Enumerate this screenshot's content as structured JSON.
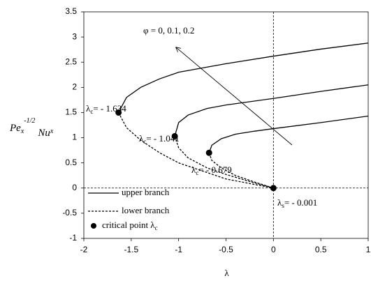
{
  "chart_data": {
    "type": "line",
    "xlabel": "λ",
    "ylabel": {
      "parts": [
        "Pe",
        "x",
        "-1/2",
        "Nu",
        "x"
      ]
    },
    "xlim": [
      -2,
      1
    ],
    "ylim": [
      -1,
      3.5
    ],
    "xticks": [
      -2,
      -1.5,
      -1,
      -0.5,
      0,
      0.5,
      1
    ],
    "yticks": [
      -1,
      -0.5,
      0,
      0.5,
      1,
      1.5,
      2,
      2.5,
      3,
      3.5
    ],
    "color": "#000000",
    "reference_lines": {
      "x": [
        0
      ],
      "y": [
        0
      ]
    },
    "series": [
      {
        "style": "solid",
        "x": [
          -1.634,
          -1.55,
          -1.4,
          -1.2,
          -1,
          -0.5,
          0,
          0.5,
          1
        ],
        "values": [
          1.5,
          1.8,
          2.0,
          2.17,
          2.3,
          2.47,
          2.62,
          2.76,
          2.88
        ]
      },
      {
        "style": "dashed",
        "x": [
          -1.634,
          -1.55,
          -1.4,
          -1.2,
          -1,
          -0.5,
          0
        ],
        "values": [
          1.5,
          1.2,
          0.95,
          0.7,
          0.5,
          0.18,
          0
        ]
      },
      {
        "style": "solid",
        "x": [
          -1.041,
          -1.0,
          -0.9,
          -0.7,
          -0.5,
          0,
          0.5,
          1
        ],
        "values": [
          1.03,
          1.3,
          1.45,
          1.58,
          1.65,
          1.78,
          1.92,
          2.05
        ]
      },
      {
        "style": "dashed",
        "x": [
          -1.041,
          -1.0,
          -0.9,
          -0.7,
          -0.5,
          -0.25,
          0
        ],
        "values": [
          1.03,
          0.8,
          0.6,
          0.4,
          0.27,
          0.13,
          0
        ]
      },
      {
        "style": "solid",
        "x": [
          -0.679,
          -0.65,
          -0.55,
          -0.4,
          -0.2,
          0,
          0.5,
          1
        ],
        "values": [
          0.7,
          0.85,
          0.98,
          1.07,
          1.13,
          1.18,
          1.3,
          1.43
        ]
      },
      {
        "style": "dashed",
        "x": [
          -0.679,
          -0.65,
          -0.55,
          -0.4,
          -0.2,
          0
        ],
        "values": [
          0.7,
          0.55,
          0.4,
          0.25,
          0.12,
          0
        ]
      }
    ],
    "critical_points": {
      "x": [
        -1.634,
        -1.041,
        -0.679,
        0
      ],
      "values": [
        1.5,
        1.03,
        0.7,
        0
      ]
    },
    "annotations": [
      {
        "base": "λ",
        "sub": "c",
        "text": "= - 1.634"
      },
      {
        "base": "λ",
        "sub": "c",
        "text": "= - 1.041"
      },
      {
        "base": "λ",
        "sub": "c",
        "text": "= - 0.679"
      },
      {
        "base": "λ",
        "sub": "s",
        "text": "= - 0.001"
      },
      {
        "text": "φ = 0, 0.1, 0.2"
      }
    ],
    "legend": [
      {
        "style": "solid",
        "label": "upper branch"
      },
      {
        "style": "dashed",
        "label": "lower branch"
      },
      {
        "style": "dot",
        "label": "critical point λ",
        "sub": "c"
      }
    ]
  }
}
